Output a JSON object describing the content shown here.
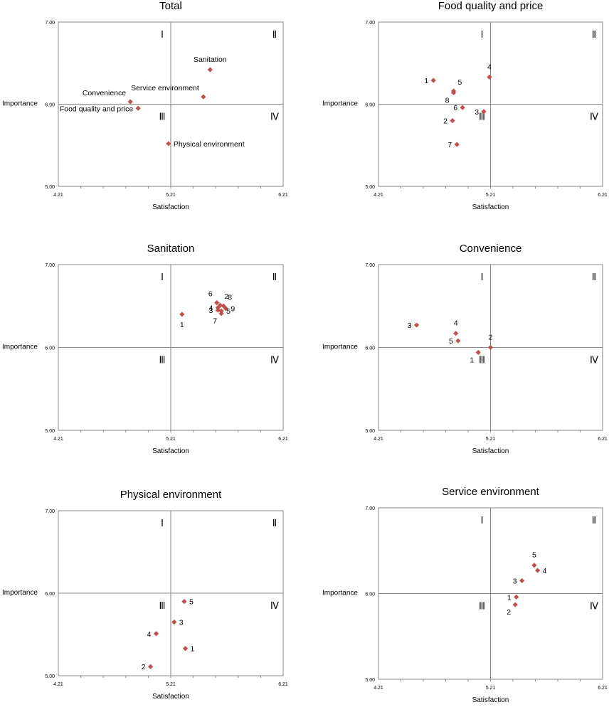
{
  "colors": {
    "marker": "#c0504d",
    "axis": "#868686",
    "text": "#000000"
  },
  "chart_data": [
    {
      "type": "scatter",
      "title": "Total",
      "xlabel": "Satisfaction",
      "ylabel": "Importance",
      "xlim": [
        4.21,
        6.21
      ],
      "ylim": [
        5.0,
        7.0
      ],
      "x_ticks": [
        "4.21",
        "5.21",
        "6.21"
      ],
      "y_ticks": [
        "5.00",
        "6.00",
        "7.00"
      ],
      "x_divider": 5.21,
      "y_divider": 6.0,
      "quadrants": [
        "Ⅰ",
        "Ⅱ",
        "Ⅲ",
        "Ⅳ"
      ],
      "points": [
        {
          "label": "Sanitation",
          "x": 5.56,
          "y": 6.42,
          "pos": "above"
        },
        {
          "label": "Convenience",
          "x": 4.85,
          "y": 6.03,
          "pos": "above-left"
        },
        {
          "label": "Service environment",
          "x": 5.5,
          "y": 6.09,
          "pos": "above-left"
        },
        {
          "label": "Food quality and price",
          "x": 4.92,
          "y": 5.95,
          "pos": "left"
        },
        {
          "label": "Physical environment",
          "x": 5.19,
          "y": 5.52,
          "pos": "right"
        }
      ]
    },
    {
      "type": "scatter",
      "title": "Food quality and price",
      "xlabel": "Satisfaction",
      "ylabel": "Importance",
      "xlim": [
        4.21,
        6.21
      ],
      "ylim": [
        5.0,
        7.0
      ],
      "x_ticks": [
        "4.21",
        "5.21",
        "6.21"
      ],
      "y_ticks": [
        "5.00",
        "6.00",
        "7.00"
      ],
      "x_divider": 5.21,
      "y_divider": 6.0,
      "quadrants": [
        "Ⅰ",
        "Ⅱ",
        "Ⅲ",
        "Ⅳ"
      ],
      "points": [
        {
          "label": "1",
          "x": 4.7,
          "y": 6.29,
          "pos": "left"
        },
        {
          "label": "4",
          "x": 5.2,
          "y": 6.33,
          "pos": "above"
        },
        {
          "label": "5",
          "x": 4.88,
          "y": 6.16,
          "pos": "above-right"
        },
        {
          "label": "8",
          "x": 4.88,
          "y": 6.14,
          "pos": "below-left"
        },
        {
          "label": "6",
          "x": 4.96,
          "y": 5.96,
          "pos": "left"
        },
        {
          "label": "3",
          "x": 5.15,
          "y": 5.91,
          "pos": "left"
        },
        {
          "label": "2",
          "x": 4.87,
          "y": 5.8,
          "pos": "left"
        },
        {
          "label": "7",
          "x": 4.91,
          "y": 5.51,
          "pos": "left"
        }
      ]
    },
    {
      "type": "scatter",
      "title": "Sanitation",
      "xlabel": "Satisfaction",
      "ylabel": "Importance",
      "xlim": [
        4.21,
        6.21
      ],
      "ylim": [
        5.0,
        7.0
      ],
      "x_ticks": [
        "4.21",
        "5.21",
        "6.21"
      ],
      "y_ticks": [
        "5.00",
        "6.00",
        "7.00"
      ],
      "x_divider": 5.21,
      "y_divider": 6.0,
      "quadrants": [
        "Ⅰ",
        "Ⅱ",
        "Ⅲ",
        "Ⅳ"
      ],
      "points": [
        {
          "label": "1",
          "x": 5.31,
          "y": 6.4,
          "pos": "below"
        },
        {
          "label": "6",
          "x": 5.62,
          "y": 6.54,
          "pos": "above-left"
        },
        {
          "label": "2",
          "x": 5.65,
          "y": 6.51,
          "pos": "above-right"
        },
        {
          "label": "8",
          "x": 5.68,
          "y": 6.5,
          "pos": "above-right"
        },
        {
          "label": "4",
          "x": 5.63,
          "y": 6.48,
          "pos": "left"
        },
        {
          "label": "9",
          "x": 5.7,
          "y": 6.47,
          "pos": "right"
        },
        {
          "label": "3",
          "x": 5.63,
          "y": 6.45,
          "pos": "left"
        },
        {
          "label": "5",
          "x": 5.66,
          "y": 6.44,
          "pos": "right"
        },
        {
          "label": "7",
          "x": 5.66,
          "y": 6.41,
          "pos": "below-left"
        }
      ]
    },
    {
      "type": "scatter",
      "title": "Convenience",
      "xlabel": "Satisfaction",
      "ylabel": "Importance",
      "xlim": [
        4.21,
        6.21
      ],
      "ylim": [
        5.0,
        7.0
      ],
      "x_ticks": [
        "4.21",
        "5.21",
        "6.21"
      ],
      "y_ticks": [
        "5.00",
        "6.00",
        "7.00"
      ],
      "x_divider": 5.21,
      "y_divider": 6.0,
      "quadrants": [
        "Ⅰ",
        "Ⅱ",
        "Ⅲ",
        "Ⅳ"
      ],
      "points": [
        {
          "label": "3",
          "x": 4.55,
          "y": 6.27,
          "pos": "left"
        },
        {
          "label": "4",
          "x": 4.9,
          "y": 6.17,
          "pos": "above"
        },
        {
          "label": "5",
          "x": 4.92,
          "y": 6.08,
          "pos": "left"
        },
        {
          "label": "2",
          "x": 5.21,
          "y": 6.0,
          "pos": "above"
        },
        {
          "label": "1",
          "x": 5.1,
          "y": 5.94,
          "pos": "below-left"
        }
      ]
    },
    {
      "type": "scatter",
      "title": "Physical environment",
      "xlabel": "Satisfaction",
      "ylabel": "Importance",
      "xlim": [
        4.21,
        6.21
      ],
      "ylim": [
        5.0,
        7.0
      ],
      "x_ticks": [
        "4.21",
        "5.21",
        "6.21"
      ],
      "y_ticks": [
        "5.00",
        "6.00",
        "7.00"
      ],
      "x_divider": 5.21,
      "y_divider": 6.0,
      "quadrants": [
        "Ⅰ",
        "Ⅱ",
        "Ⅲ",
        "Ⅳ"
      ],
      "points": [
        {
          "label": "5",
          "x": 5.33,
          "y": 5.9,
          "pos": "right"
        },
        {
          "label": "3",
          "x": 5.24,
          "y": 5.65,
          "pos": "right"
        },
        {
          "label": "4",
          "x": 5.08,
          "y": 5.51,
          "pos": "left"
        },
        {
          "label": "1",
          "x": 5.34,
          "y": 5.33,
          "pos": "right"
        },
        {
          "label": "2",
          "x": 5.03,
          "y": 5.11,
          "pos": "left"
        }
      ]
    },
    {
      "type": "scatter",
      "title": "Service environment",
      "xlabel": "Satisfaction",
      "ylabel": "Importance",
      "xlim": [
        4.21,
        6.21
      ],
      "ylim": [
        5.0,
        7.0
      ],
      "x_ticks": [
        "4.21",
        "5.21",
        "6.21"
      ],
      "y_ticks": [
        "5.00",
        "6.00",
        "7.00"
      ],
      "x_divider": 5.21,
      "y_divider": 6.0,
      "quadrants": [
        "Ⅰ",
        "Ⅱ",
        "Ⅲ",
        "Ⅳ"
      ],
      "points": [
        {
          "label": "5",
          "x": 5.6,
          "y": 6.33,
          "pos": "above"
        },
        {
          "label": "4",
          "x": 5.63,
          "y": 6.27,
          "pos": "right"
        },
        {
          "label": "3",
          "x": 5.49,
          "y": 6.15,
          "pos": "left"
        },
        {
          "label": "1",
          "x": 5.44,
          "y": 5.96,
          "pos": "left"
        },
        {
          "label": "2",
          "x": 5.43,
          "y": 5.87,
          "pos": "below-left"
        }
      ]
    }
  ]
}
